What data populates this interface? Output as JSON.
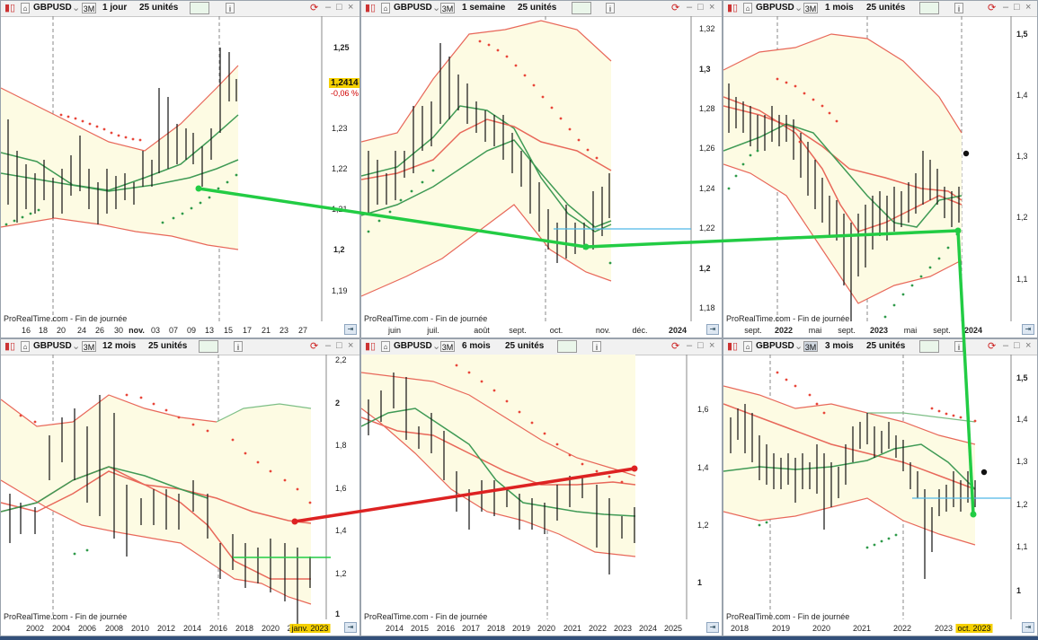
{
  "panels": [
    {
      "symbol": "GBPUSD",
      "range": "3M",
      "interval": "1 jour",
      "units": "25 unités",
      "source": "ProRealTime.com - Fin de journée",
      "y_ticks": [
        "1,25",
        "1,23",
        "1,22",
        "1,21",
        "1,2",
        "1,19"
      ],
      "x_ticks": [
        "16",
        "18",
        "20",
        "24",
        "26",
        "30",
        "nov.",
        "03",
        "07",
        "09",
        "13",
        "15",
        "17",
        "21",
        "23",
        "27"
      ],
      "price": "1,2414",
      "change": "-0,06 %"
    },
    {
      "symbol": "GBPUSD",
      "range": "3M",
      "interval": "1 semaine",
      "units": "25 unités",
      "source": "ProRealTime.com - Fin de journée",
      "y_ticks": [
        "1,32",
        "1,3",
        "1,28",
        "1,26",
        "1,24",
        "1,22",
        "1,2",
        "1,18"
      ],
      "x_ticks": [
        "juin",
        "juil.",
        "août",
        "sept.",
        "oct.",
        "nov.",
        "déc.",
        "2024"
      ]
    },
    {
      "symbol": "GBPUSD",
      "range": "3M",
      "interval": "1 mois",
      "units": "25 unités",
      "source": "ProRealTime.com - Fin de journée",
      "y_ticks": [
        "1,5",
        "1,4",
        "1,3",
        "1,2",
        "1,1"
      ],
      "x_ticks": [
        "sept.",
        "2022",
        "mai",
        "sept.",
        "2023",
        "mai",
        "sept.",
        "2024"
      ]
    },
    {
      "symbol": "GBPUSD",
      "range": "3M",
      "interval": "12 mois",
      "units": "25 unités",
      "source": "ProRealTime.com - Fin de journée",
      "y_ticks": [
        "2,2",
        "2",
        "1,8",
        "1,6",
        "1,4",
        "1,2",
        "1"
      ],
      "x_ticks": [
        "2002",
        "2004",
        "2006",
        "2008",
        "2010",
        "2012",
        "2014",
        "2016",
        "2018",
        "2020",
        "2"
      ],
      "x_highlight": "janv. 2023"
    },
    {
      "symbol": "GBPUSD",
      "range": "3M",
      "interval": "6 mois",
      "units": "25 unités",
      "source": "ProRealTime.com - Fin de journée",
      "y_ticks": [
        "1,6",
        "1,4",
        "1,2",
        "1"
      ],
      "x_ticks": [
        "2014",
        "2015",
        "2016",
        "2017",
        "2018",
        "2019",
        "2020",
        "2021",
        "2022",
        "2023",
        "2024",
        "2025"
      ]
    },
    {
      "symbol": "GBPUSD",
      "range": "3M",
      "interval": "3 mois",
      "units": "25 unités",
      "source": "ProRealTime.com - Fin de journée",
      "y_ticks": [
        "1,5",
        "1,4",
        "1,3",
        "1,2",
        "1,1",
        "1"
      ],
      "x_ticks": [
        "2018",
        "2019",
        "2020",
        "2021",
        "2022",
        "2023"
      ],
      "x_highlight": "oct. 2023"
    }
  ],
  "colors": {
    "band_fill": "#fdfbe3",
    "ma_green": "#3f9a55",
    "band_red": "#e8685a",
    "band_green": "#7dbf86",
    "sar_red": "#e8463a",
    "sar_green": "#2f9a4a",
    "annot_green": "#22cc44",
    "annot_red": "#dd2222",
    "hline_cyan": "#4fb8e8"
  }
}
